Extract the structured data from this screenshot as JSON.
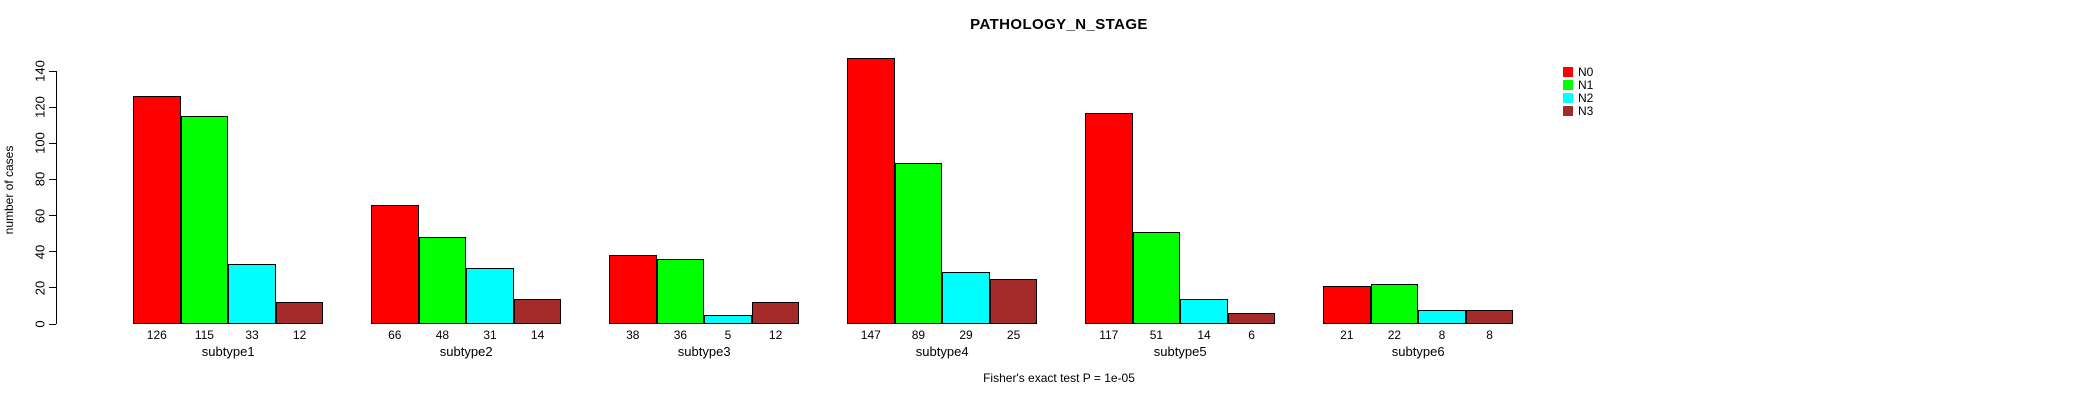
{
  "chart_data": {
    "type": "bar",
    "title": "PATHOLOGY_N_STAGE",
    "ylabel": "number of cases",
    "xlabel": "",
    "caption": "Fisher's exact test P = 1e-05",
    "categories": [
      "subtype1",
      "subtype2",
      "subtype3",
      "subtype4",
      "subtype5",
      "subtype6"
    ],
    "series": [
      {
        "name": "N0",
        "color": "#FF0000",
        "values": [
          126,
          66,
          38,
          147,
          117,
          21
        ]
      },
      {
        "name": "N1",
        "color": "#00FF00",
        "values": [
          115,
          48,
          36,
          89,
          51,
          22
        ]
      },
      {
        "name": "N2",
        "color": "#00FFFF",
        "values": [
          33,
          31,
          5,
          29,
          14,
          8
        ]
      },
      {
        "name": "N3",
        "color": "#A52A2A",
        "values": [
          12,
          14,
          12,
          25,
          6,
          8
        ]
      }
    ],
    "ylim": [
      0,
      140
    ],
    "yticks": [
      0,
      20,
      40,
      60,
      80,
      100,
      120,
      140
    ],
    "grid": false,
    "legend_position": "topright",
    "bar_value_labels": true
  }
}
